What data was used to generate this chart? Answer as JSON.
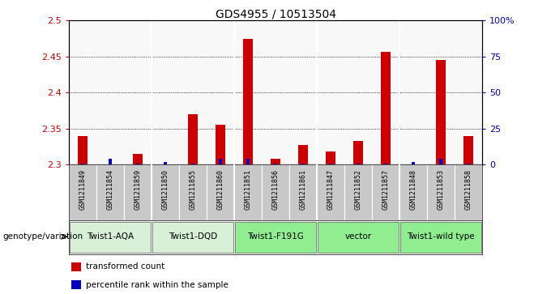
{
  "title": "GDS4955 / 10513504",
  "samples": [
    "GSM1211849",
    "GSM1211854",
    "GSM1211859",
    "GSM1211850",
    "GSM1211855",
    "GSM1211860",
    "GSM1211851",
    "GSM1211856",
    "GSM1211861",
    "GSM1211847",
    "GSM1211852",
    "GSM1211857",
    "GSM1211848",
    "GSM1211853",
    "GSM1211858"
  ],
  "red_values": [
    2.34,
    2.3,
    2.315,
    2.3,
    2.37,
    2.355,
    2.475,
    2.308,
    2.327,
    2.318,
    2.333,
    2.457,
    2.3,
    2.445,
    2.34
  ],
  "blue_values": [
    1,
    4,
    1,
    2,
    1,
    4,
    4,
    1,
    1,
    1,
    1,
    1,
    2,
    4,
    1
  ],
  "ylim_left": [
    2.3,
    2.5
  ],
  "ylim_right": [
    0,
    100
  ],
  "yticks_left": [
    2.3,
    2.35,
    2.4,
    2.45,
    2.5
  ],
  "yticks_right": [
    0,
    25,
    50,
    75,
    100
  ],
  "ytick_labels_right": [
    "0",
    "25",
    "50",
    "75",
    "100%"
  ],
  "groups": [
    {
      "label": "Twist1-AQA",
      "indices": [
        0,
        1,
        2
      ],
      "color": "#d8f0d8"
    },
    {
      "label": "Twist1-DQD",
      "indices": [
        3,
        4,
        5
      ],
      "color": "#d8f0d8"
    },
    {
      "label": "Twist1-F191G",
      "indices": [
        6,
        7,
        8
      ],
      "color": "#90ee90"
    },
    {
      "label": "vector",
      "indices": [
        9,
        10,
        11
      ],
      "color": "#90ee90"
    },
    {
      "label": "Twist1-wild type",
      "indices": [
        12,
        13,
        14
      ],
      "color": "#90ee90"
    }
  ],
  "bar_width": 0.35,
  "blue_bar_width": 0.12,
  "xlabel_left": "genotype/variation",
  "legend_red": "transformed count",
  "legend_blue": "percentile rank within the sample",
  "background_color": "#ffffff",
  "red_color": "#cc0000",
  "blue_color": "#0000bb",
  "sample_bg_color": "#c8c8c8",
  "group_boundary_color": "#888888",
  "grid_color": "#555555",
  "group_boundaries": [
    2.5,
    5.5,
    8.5,
    11.5
  ]
}
